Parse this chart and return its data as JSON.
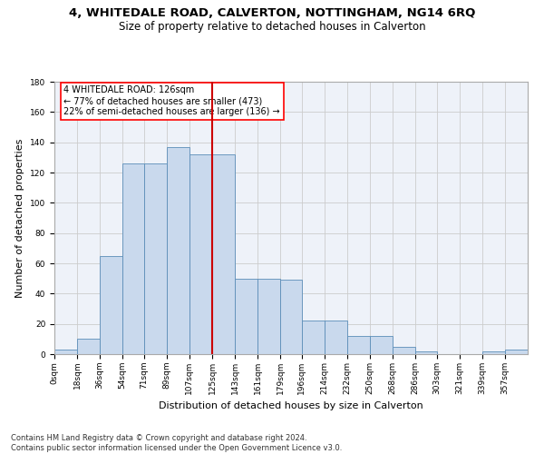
{
  "title1": "4, WHITEDALE ROAD, CALVERTON, NOTTINGHAM, NG14 6RQ",
  "title2": "Size of property relative to detached houses in Calverton",
  "xlabel": "Distribution of detached houses by size in Calverton",
  "ylabel": "Number of detached properties",
  "footer1": "Contains HM Land Registry data © Crown copyright and database right 2024.",
  "footer2": "Contains public sector information licensed under the Open Government Licence v3.0.",
  "annotation_title": "4 WHITEDALE ROAD: 126sqm",
  "annotation_line1": "← 77% of detached houses are smaller (473)",
  "annotation_line2": "22% of semi-detached houses are larger (136) →",
  "bar_labels": [
    "0sqm",
    "18sqm",
    "36sqm",
    "54sqm",
    "71sqm",
    "89sqm",
    "107sqm",
    "125sqm",
    "143sqm",
    "161sqm",
    "179sqm",
    "196sqm",
    "214sqm",
    "232sqm",
    "250sqm",
    "268sqm",
    "286sqm",
    "303sqm",
    "321sqm",
    "339sqm",
    "357sqm"
  ],
  "bar_heights": [
    3,
    10,
    65,
    126,
    126,
    137,
    132,
    132,
    50,
    50,
    49,
    22,
    22,
    12,
    12,
    5,
    2,
    0,
    0,
    2,
    3
  ],
  "bin_edges": [
    0,
    18,
    36,
    54,
    71,
    89,
    107,
    125,
    143,
    161,
    179,
    196,
    214,
    232,
    250,
    268,
    286,
    303,
    321,
    339,
    357,
    375
  ],
  "bar_color": "#c9d9ed",
  "bar_edgecolor": "#5b8db8",
  "vline_x": 125,
  "vline_color": "#cc0000",
  "ylim": [
    0,
    180
  ],
  "yticks": [
    0,
    20,
    40,
    60,
    80,
    100,
    120,
    140,
    160,
    180
  ],
  "grid_color": "#cccccc",
  "bg_color": "#eef2f9",
  "title_fontsize": 9.5,
  "subtitle_fontsize": 8.5,
  "axis_label_fontsize": 8,
  "tick_fontsize": 6.5,
  "footer_fontsize": 6,
  "ann_fontsize": 7
}
